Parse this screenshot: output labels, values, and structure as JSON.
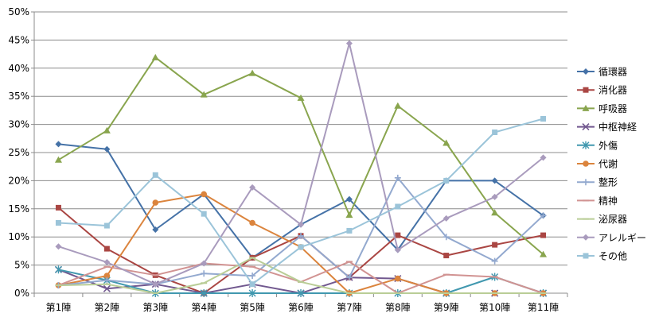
{
  "chart_data": {
    "type": "line",
    "categories": [
      "第1陣",
      "第2陣",
      "第3陣",
      "第4陣",
      "第5陣",
      "第6陣",
      "第7陣",
      "第8陣",
      "第9陣",
      "第10陣",
      "第11陣"
    ],
    "ylim": [
      0,
      50
    ],
    "yticks": [
      "0%",
      "5%",
      "10%",
      "15%",
      "20%",
      "25%",
      "30%",
      "35%",
      "40%",
      "45%",
      "50%"
    ],
    "grid": true,
    "legend_position": "right",
    "series": [
      {
        "name": "循環器",
        "color": "#4572A7",
        "marker": "diamond",
        "values": [
          26.5,
          25.6,
          11.3,
          17.6,
          6.3,
          12.2,
          16.7,
          7.7,
          20.0,
          20.0,
          13.8
        ]
      },
      {
        "name": "消化器",
        "color": "#AA4643",
        "marker": "square",
        "values": [
          15.2,
          7.9,
          3.2,
          0.0,
          6.3,
          10.2,
          2.8,
          10.3,
          6.7,
          8.6,
          10.3
        ]
      },
      {
        "name": "呼吸器",
        "color": "#89A54E",
        "marker": "triangle",
        "values": [
          23.7,
          28.9,
          41.9,
          35.3,
          39.1,
          34.7,
          13.9,
          33.3,
          26.7,
          14.3,
          6.9
        ]
      },
      {
        "name": "中枢神経",
        "color": "#71588F",
        "marker": "x",
        "values": [
          4.2,
          0.8,
          1.6,
          0.0,
          1.6,
          0.0,
          2.8,
          2.6,
          0.0,
          0.0,
          0.0
        ]
      },
      {
        "name": "外傷",
        "color": "#4198AF",
        "marker": "star",
        "values": [
          4.2,
          2.3,
          0.0,
          0.0,
          0.0,
          0.0,
          0.0,
          0.0,
          0.0,
          2.9,
          0.0
        ]
      },
      {
        "name": "代謝",
        "color": "#DB843D",
        "marker": "circle",
        "values": [
          1.4,
          3.1,
          16.1,
          17.6,
          12.5,
          8.2,
          0.0,
          2.6,
          0.0,
          0.0,
          0.0
        ]
      },
      {
        "name": "整形",
        "color": "#93A9CF",
        "marker": "plus",
        "values": [
          1.4,
          2.3,
          1.6,
          3.5,
          3.1,
          10.2,
          2.8,
          20.5,
          10.0,
          5.7,
          13.8
        ]
      },
      {
        "name": "精神",
        "color": "#D19392",
        "marker": "dash",
        "values": [
          1.4,
          4.7,
          3.2,
          5.3,
          4.7,
          2.0,
          5.6,
          0.0,
          3.3,
          2.9,
          0.0
        ]
      },
      {
        "name": "泌尿器",
        "color": "#B9CD96",
        "marker": "dash",
        "values": [
          1.4,
          1.6,
          0.0,
          1.8,
          6.3,
          2.0,
          0.0,
          0.0,
          0.0,
          0.0,
          0.0
        ]
      },
      {
        "name": "アレルギー",
        "color": "#A99BBD",
        "marker": "diamond",
        "values": [
          8.3,
          5.5,
          1.6,
          5.3,
          18.8,
          12.2,
          44.4,
          7.7,
          13.3,
          17.1,
          24.1
        ]
      },
      {
        "name": "その他",
        "color": "#9BC4D9",
        "marker": "square",
        "values": [
          12.5,
          12.0,
          21.0,
          14.1,
          1.6,
          8.2,
          11.1,
          15.4,
          20.0,
          28.6,
          31.0
        ]
      }
    ]
  }
}
